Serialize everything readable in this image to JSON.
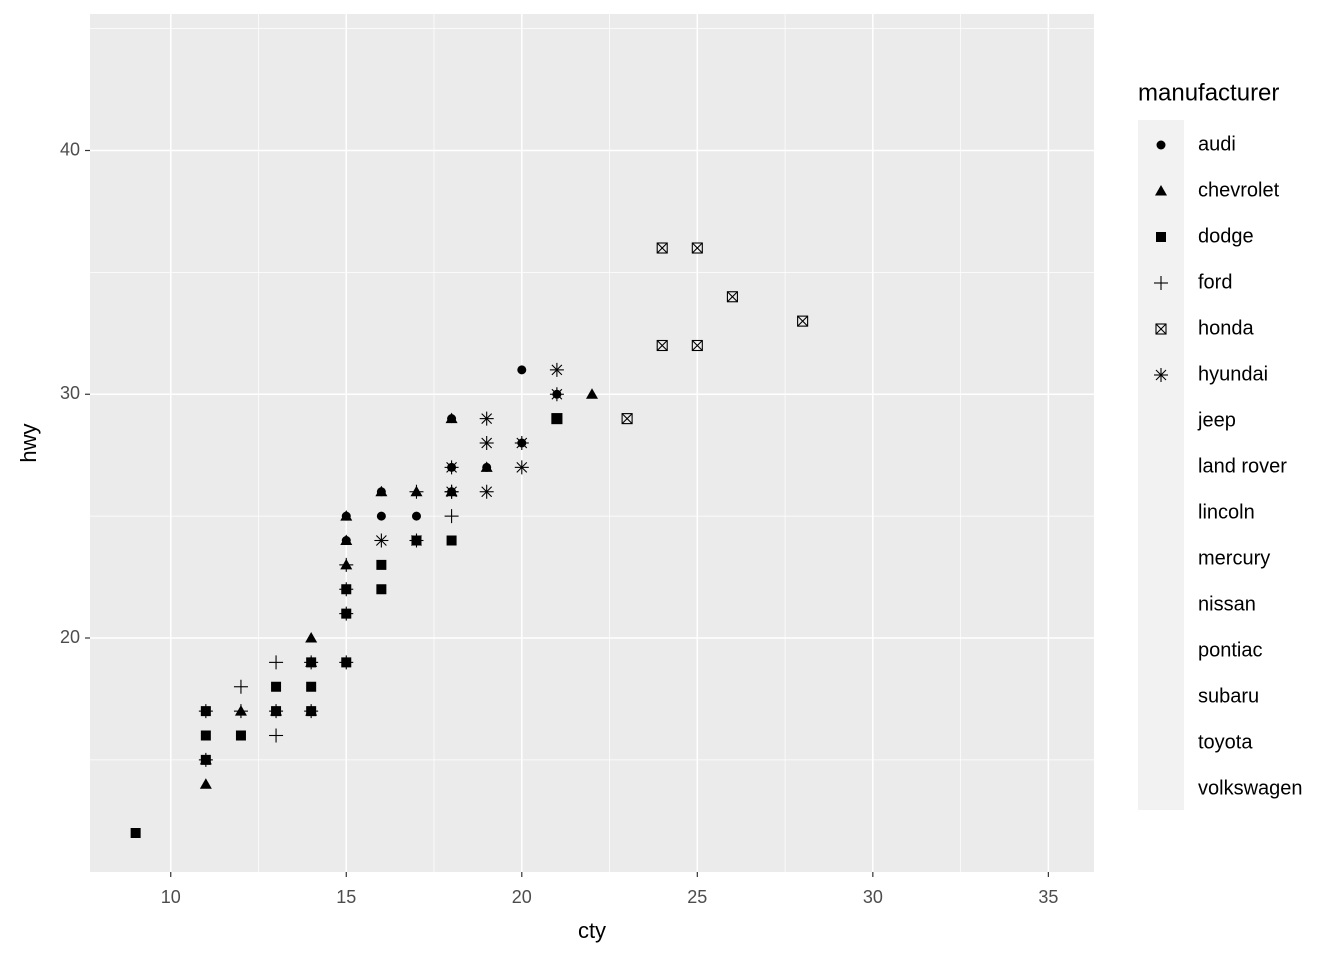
{
  "chart_data": {
    "type": "scatter",
    "x_label": "cty",
    "y_label": "hwy",
    "legend_title": "manufacturer",
    "xlim": [
      7.7,
      36.3
    ],
    "ylim": [
      10.4,
      45.6
    ],
    "xticks": [
      10,
      15,
      20,
      25,
      30,
      35
    ],
    "yticks": [
      20,
      30,
      40
    ],
    "grid": true,
    "panel_color": "#ebebeb",
    "legend_position": "right",
    "series": [
      {
        "name": "audi",
        "shape": "circle",
        "color": "#000000",
        "x": [
          18,
          21,
          20,
          21,
          16,
          18,
          18,
          16,
          20,
          19,
          15,
          17,
          15,
          16
        ],
        "values": [
          29,
          29,
          31,
          30,
          26,
          26,
          27,
          25,
          28,
          27,
          25,
          25,
          24,
          23
        ]
      },
      {
        "name": "chevrolet",
        "shape": "triangle",
        "color": "#000000",
        "x": [
          14,
          11,
          13,
          12,
          16,
          15,
          15,
          15,
          14,
          11,
          14,
          19,
          22,
          18,
          18,
          17
        ],
        "values": [
          20,
          15,
          17,
          17,
          26,
          23,
          25,
          24,
          19,
          14,
          17,
          27,
          30,
          26,
          29,
          26
        ]
      },
      {
        "name": "dodge",
        "shape": "square",
        "color": "#000000",
        "x": [
          9,
          11,
          11,
          11,
          12,
          13,
          13,
          14,
          14,
          14,
          15,
          15,
          15,
          16,
          16,
          17,
          18,
          21
        ],
        "values": [
          12,
          15,
          16,
          17,
          16,
          17,
          18,
          17,
          18,
          19,
          19,
          21,
          22,
          22,
          23,
          24,
          24,
          29
        ]
      },
      {
        "name": "ford",
        "shape": "plus",
        "color": "#000000",
        "x": [
          11,
          11,
          12,
          12,
          13,
          13,
          13,
          14,
          14,
          15,
          15,
          15,
          17,
          18,
          18,
          15
        ],
        "values": [
          15,
          17,
          17,
          18,
          16,
          17,
          19,
          17,
          19,
          19,
          21,
          22,
          26,
          25,
          26,
          23
        ]
      },
      {
        "name": "honda",
        "shape": "boxcross",
        "color": "#000000",
        "x": [
          28,
          24,
          25,
          23,
          26,
          25,
          24,
          21
        ],
        "values": [
          33,
          32,
          32,
          29,
          34,
          36,
          36,
          29
        ]
      },
      {
        "name": "hyundai",
        "shape": "asterisk",
        "color": "#000000",
        "x": [
          18,
          18,
          21,
          21,
          19,
          19,
          19,
          20,
          20,
          16,
          17
        ],
        "values": [
          26,
          27,
          30,
          31,
          26,
          28,
          29,
          27,
          28,
          24,
          24
        ]
      },
      {
        "name": "jeep",
        "x": [],
        "values": []
      },
      {
        "name": "land rover",
        "x": [],
        "values": []
      },
      {
        "name": "lincoln",
        "x": [],
        "values": []
      },
      {
        "name": "mercury",
        "x": [],
        "values": []
      },
      {
        "name": "nissan",
        "x": [],
        "values": []
      },
      {
        "name": "pontiac",
        "x": [],
        "values": []
      },
      {
        "name": "subaru",
        "x": [],
        "values": []
      },
      {
        "name": "toyota",
        "x": [],
        "values": []
      },
      {
        "name": "volkswagen",
        "x": [],
        "values": []
      }
    ]
  }
}
